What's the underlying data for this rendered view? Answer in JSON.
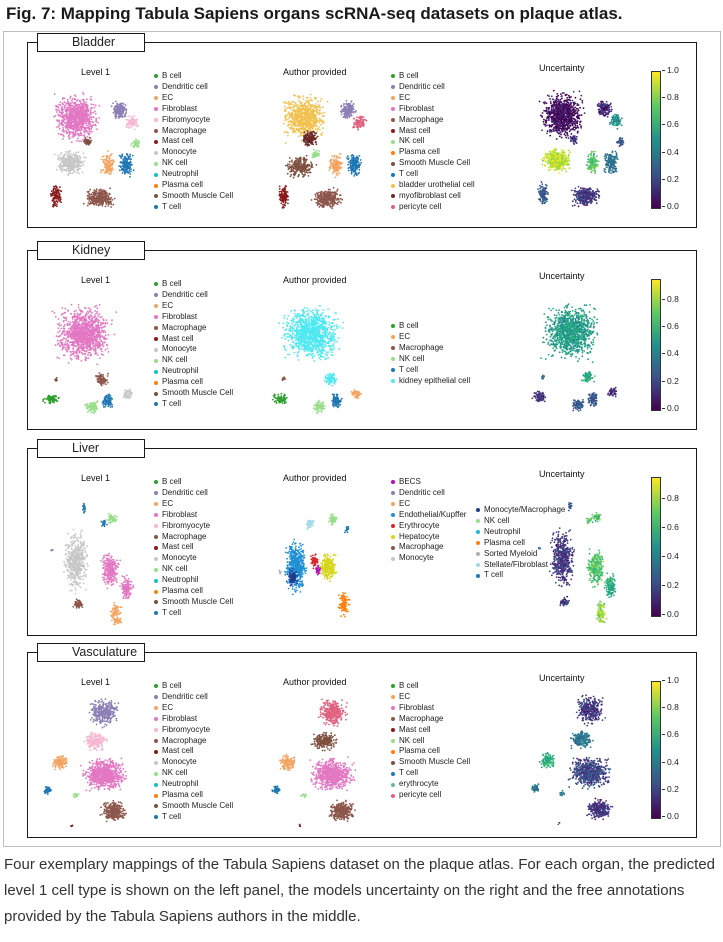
{
  "figure": {
    "title": "Fig. 7: Mapping Tabula Sapiens organs scRNA-seq datasets on plaque atlas.",
    "caption": "Four exemplary mappings of the Tabula Sapiens dataset on the plaque atlas. For each organ, the predicted level 1 cell type is shown on the left panel, the models uncertainty on the right and the free annotations provided by the Tabula Sapiens authors in the middle."
  },
  "colors": {
    "B cell": "#2ca02c",
    "Dendritic cell": "#8c7fb5",
    "EC": "#f4a460",
    "Fibroblast": "#e377c2",
    "Fibromyocyte": "#f7b6d2",
    "Macrophage": "#8c564b",
    "Mast cell": "#8b1a1a",
    "Monocyte": "#c7c7c7",
    "NK cell": "#98df8a",
    "Neutrophil": "#17becf",
    "Plasma cell": "#ff7f0e",
    "Smooth Muscle Cell": "#7f4f3f",
    "T cell": "#1f77b4",
    "bladder urothelial cell": "#f2c14e",
    "myofibroblast cell": "#6b2b2b",
    "pericyte cell": "#e0607e",
    "kidney epithelial cell": "#4fe8f0",
    "BECS": "#b40fb4",
    "Endothelial/Kupffer": "#1f8fd6",
    "Erythrocyte": "#d62728",
    "Hepatocyte": "#d6d61a",
    "Monocyte/Macrophage": "#1f3c8f",
    "Sorted Myeloid": "#b0b0b0",
    "Stellate/Fibroblast": "#9edae5",
    "erythrocyte": "#6bb5a0"
  },
  "panels": [
    {
      "organ": "Bladder",
      "level1_title": "Level 1",
      "author_title": "Author provided",
      "uncertainty_title": "Uncertainty",
      "level1_legend": [
        "B cell",
        "Dendritic cell",
        "EC",
        "Fibroblast",
        "Fibromyocyte",
        "Macrophage",
        "Mast cell",
        "Monocyte",
        "NK cell",
        "Neutrophil",
        "Plasma cell",
        "Smooth Muscle Cell",
        "T cell"
      ],
      "author_legend": [
        "B cell",
        "Dendritic cell",
        "EC",
        "Fibroblast",
        "Macrophage",
        "Mast cell",
        "NK cell",
        "Plasma cell",
        "Smooth Muscle Cell",
        "T cell",
        "bladder urothelial cell",
        "myofibroblast cell",
        "pericyte cell"
      ],
      "colorbar_ticks": [
        "1.0",
        "0.8",
        "0.6",
        "0.4",
        "0.2",
        "0.0"
      ]
    },
    {
      "organ": "Kidney",
      "level1_title": "Level 1",
      "author_title": "Author provided",
      "uncertainty_title": "Uncertainty",
      "level1_legend": [
        "B cell",
        "Dendritic cell",
        "EC",
        "Fibroblast",
        "Macrophage",
        "Mast cell",
        "Monocyte",
        "NK cell",
        "Neutrophil",
        "Plasma cell",
        "Smooth Muscle Cell",
        "T cell"
      ],
      "author_legend": [
        "B cell",
        "EC",
        "Macrophage",
        "NK cell",
        "T cell",
        "kidney epithelial cell"
      ],
      "colorbar_ticks": [
        "0.8",
        "0.6",
        "0.4",
        "0.2",
        "0.0"
      ]
    },
    {
      "organ": "Liver",
      "level1_title": "Level 1",
      "author_title": "Author provided",
      "uncertainty_title": "Uncertainty",
      "level1_legend": [
        "B cell",
        "Dendritic cell",
        "EC",
        "Fibroblast",
        "Fibromyocyte",
        "Macrophage",
        "Mast cell",
        "Monocyte",
        "NK cell",
        "Neutrophil",
        "Plasma cell",
        "Smooth Muscle Cell",
        "T cell"
      ],
      "author_legend": [
        "BECS",
        "Dendritic cell",
        "EC",
        "Endothelial/Kupffer",
        "Erythrocyte",
        "Hepatocyte",
        "Macrophage",
        "Monocyte"
      ],
      "author_legend_2": [
        "Monocyte/Macrophage",
        "NK cell",
        "Neutrophil",
        "Plasma cell",
        "Sorted Myeloid",
        "Stellate/Fibroblast",
        "T cell"
      ],
      "colorbar_ticks": [
        "0.8",
        "0.6",
        "0.4",
        "0.2",
        "0.0"
      ]
    },
    {
      "organ": "Vasculature",
      "level1_title": "Level 1",
      "author_title": "Author provided",
      "uncertainty_title": "Uncertainty",
      "level1_legend": [
        "B cell",
        "Dendritic cell",
        "EC",
        "Fibroblast",
        "Fibromyocyte",
        "Macrophage",
        "Mast cell",
        "Monocyte",
        "NK cell",
        "Neutrophil",
        "Plasma cell",
        "Smooth Muscle Cell",
        "T cell"
      ],
      "author_legend": [
        "B cell",
        "EC",
        "Fibroblast",
        "Macrophage",
        "Mast cell",
        "NK cell",
        "Plasma cell",
        "Smooth Muscle Cell",
        "T cell",
        "erythrocyte",
        "pericyte cell"
      ],
      "colorbar_ticks": [
        "1.0",
        "0.8",
        "0.6",
        "0.4",
        "0.2",
        "0.0"
      ]
    }
  ]
}
